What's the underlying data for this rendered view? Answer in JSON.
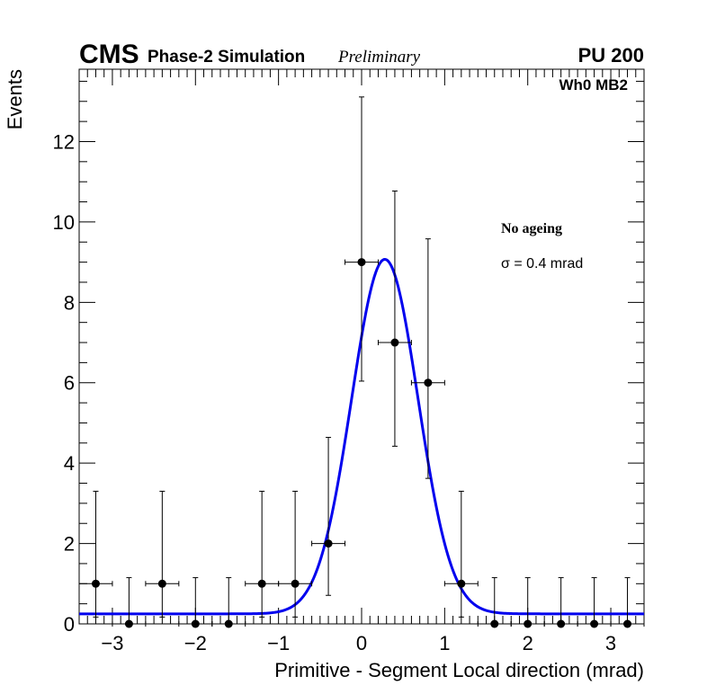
{
  "header": {
    "cms": "CMS",
    "phase": "Phase-2 Simulation",
    "preliminary": "Preliminary",
    "pileup": "PU 200"
  },
  "chart_data": {
    "type": "scatter",
    "title": "Wh0 MB2",
    "xlabel": "Primitive - Segment Local direction (mrad)",
    "ylabel": "Events",
    "xlim": [
      -3.4,
      3.4
    ],
    "ylim": [
      0,
      13.8
    ],
    "xticks": [
      -3,
      -2,
      -1,
      0,
      1,
      2,
      3
    ],
    "xtick_labels": [
      "−3",
      "−2",
      "−1",
      "0",
      "1",
      "2",
      "3"
    ],
    "yticks": [
      0,
      2,
      4,
      6,
      8,
      10,
      12
    ],
    "ytick_labels": [
      "0",
      "2",
      "4",
      "6",
      "8",
      "10",
      "12"
    ],
    "bin_width": 0.4,
    "series": [
      {
        "name": "data",
        "x": [
          -3.2,
          -2.8,
          -2.4,
          -2.0,
          -1.6,
          -1.2,
          -0.8,
          -0.4,
          0.0,
          0.4,
          0.8,
          1.2,
          1.6,
          2.0,
          2.4,
          2.8,
          3.2
        ],
        "y": [
          1,
          0,
          1,
          0,
          0,
          1,
          1,
          2,
          9,
          7,
          6,
          1,
          0,
          0,
          0,
          0,
          0
        ],
        "err_low": [
          0.83,
          0,
          0.83,
          0,
          0,
          0.83,
          0.83,
          1.29,
          2.96,
          2.58,
          2.38,
          0.83,
          0,
          0,
          0,
          0,
          0
        ],
        "err_high": [
          2.3,
          1.15,
          2.3,
          1.15,
          1.15,
          2.3,
          2.3,
          2.64,
          4.11,
          3.77,
          3.58,
          2.3,
          1.15,
          1.15,
          1.15,
          1.15,
          1.15
        ]
      }
    ],
    "fit": {
      "name": "gaussian",
      "constant": 0.25,
      "amplitude": 8.82,
      "mean": 0.28,
      "sigma": 0.4,
      "color": "#0000ee"
    },
    "annotations": {
      "condition": "No ageing",
      "sigma_label": "σ = 0.4 mrad"
    }
  }
}
